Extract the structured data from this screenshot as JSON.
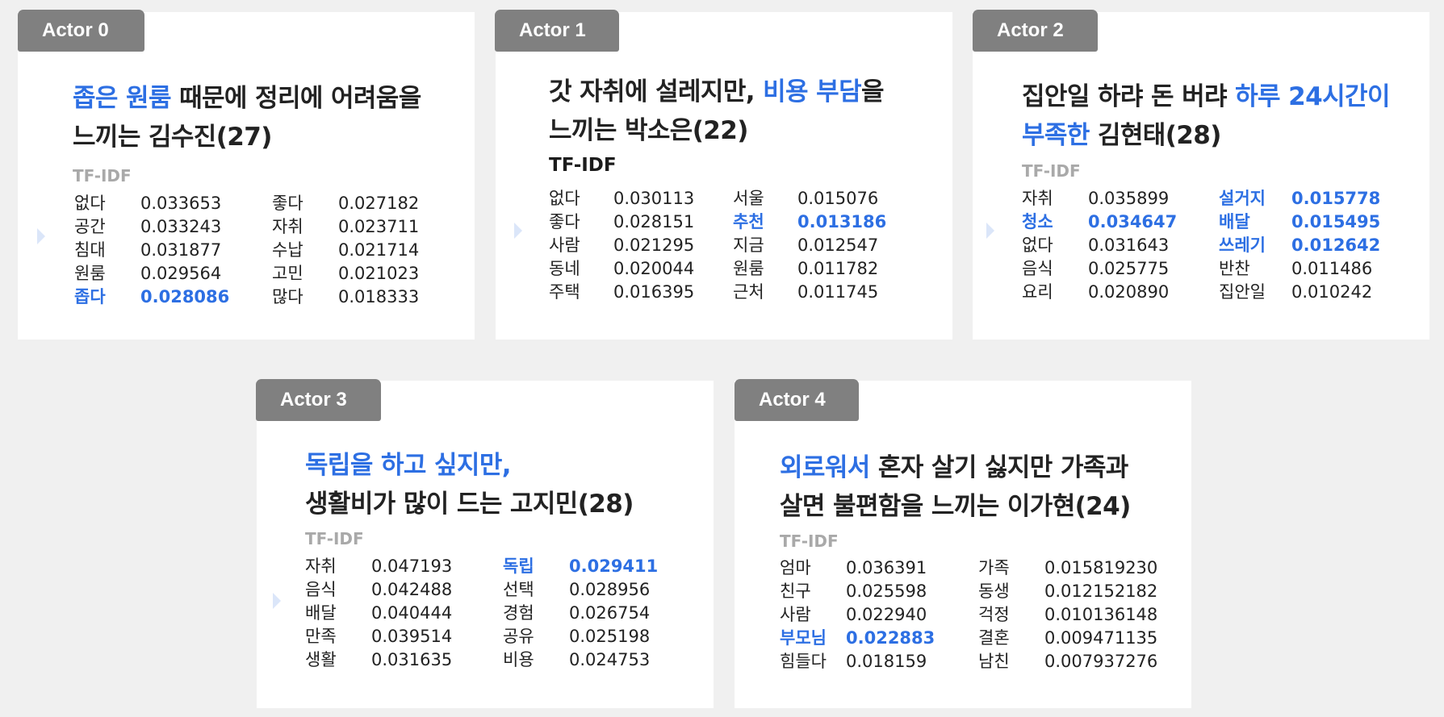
{
  "colors": {
    "accent": "#2d6fe3",
    "tab": "#808080",
    "muted": "#a9a9a9",
    "background": "#f0f0f0"
  },
  "actors": [
    {
      "tab": "Actor 0",
      "title_lines": [
        [
          {
            "text": "좁은 원룸",
            "hl": true
          },
          {
            "text": " 때문에 정리에 어려움을",
            "hl": false
          }
        ],
        [
          {
            "text": "느끼는 김수진(27)",
            "hl": false
          }
        ]
      ],
      "tfidf_label": "TF-IDF",
      "left": [
        {
          "word": "없다",
          "value": "0.033653",
          "hl": false
        },
        {
          "word": "공간",
          "value": "0.033243",
          "hl": false
        },
        {
          "word": "침대",
          "value": "0.031877",
          "hl": false
        },
        {
          "word": "원룸",
          "value": "0.029564",
          "hl": false
        },
        {
          "word": "좁다",
          "value": "0.028086",
          "hl": true
        }
      ],
      "right": [
        {
          "word": "좋다",
          "value": "0.027182",
          "hl": false
        },
        {
          "word": "자취",
          "value": "0.023711",
          "hl": false
        },
        {
          "word": "수납",
          "value": "0.021714",
          "hl": false
        },
        {
          "word": "고민",
          "value": "0.021023",
          "hl": false
        },
        {
          "word": "많다",
          "value": "0.018333",
          "hl": false
        }
      ]
    },
    {
      "tab": "Actor 1",
      "title_lines": [
        [
          {
            "text": "갓 자취에 설레지만, ",
            "hl": false
          },
          {
            "text": "비용 부담",
            "hl": true
          },
          {
            "text": "을",
            "hl": false
          }
        ],
        [
          {
            "text": "느끼는 박소은(22)",
            "hl": false
          }
        ]
      ],
      "tfidf_label": "TF-IDF",
      "left": [
        {
          "word": "없다",
          "value": "0.030113",
          "hl": false
        },
        {
          "word": "좋다",
          "value": "0.028151",
          "hl": false
        },
        {
          "word": "사람",
          "value": "0.021295",
          "hl": false
        },
        {
          "word": "동네",
          "value": "0.020044",
          "hl": false
        },
        {
          "word": "주택",
          "value": "0.016395",
          "hl": false
        }
      ],
      "right": [
        {
          "word": "서울",
          "value": "0.015076",
          "hl": false
        },
        {
          "word": "추천",
          "value": "0.013186",
          "hl": true
        },
        {
          "word": "지금",
          "value": "0.012547",
          "hl": false
        },
        {
          "word": "원룸",
          "value": "0.011782",
          "hl": false
        },
        {
          "word": "근처",
          "value": "0.011745",
          "hl": false
        }
      ]
    },
    {
      "tab": "Actor 2",
      "title_lines": [
        [
          {
            "text": "집안일 하랴 돈 버랴 ",
            "hl": false
          },
          {
            "text": "하루 24시간이",
            "hl": true
          }
        ],
        [
          {
            "text": "부족한",
            "hl": true
          },
          {
            "text": " 김현태(28)",
            "hl": false
          }
        ]
      ],
      "tfidf_label": "TF-IDF",
      "left": [
        {
          "word": "자취",
          "value": "0.035899",
          "hl": false
        },
        {
          "word": "청소",
          "value": "0.034647",
          "hl": true
        },
        {
          "word": "없다",
          "value": "0.031643",
          "hl": false
        },
        {
          "word": "음식",
          "value": "0.025775",
          "hl": false
        },
        {
          "word": "요리",
          "value": "0.020890",
          "hl": false
        }
      ],
      "right": [
        {
          "word": "설거지",
          "value": "0.015778",
          "hl": true
        },
        {
          "word": "배달",
          "value": "0.015495",
          "hl": true
        },
        {
          "word": "쓰레기",
          "value": "0.012642",
          "hl": true
        },
        {
          "word": "반찬",
          "value": "0.011486",
          "hl": false
        },
        {
          "word": "집안일",
          "value": "0.010242",
          "hl": false
        }
      ]
    },
    {
      "tab": "Actor 3",
      "title_lines": [
        [
          {
            "text": "독립을 하고 싶지만,",
            "hl": true
          }
        ],
        [
          {
            "text": "생활비가 많이 드는 고지민(28)",
            "hl": false
          }
        ]
      ],
      "tfidf_label": "TF-IDF",
      "left": [
        {
          "word": "자취",
          "value": "0.047193",
          "hl": false
        },
        {
          "word": "음식",
          "value": "0.042488",
          "hl": false
        },
        {
          "word": "배달",
          "value": "0.040444",
          "hl": false
        },
        {
          "word": "만족",
          "value": "0.039514",
          "hl": false
        },
        {
          "word": "생활",
          "value": "0.031635",
          "hl": false
        }
      ],
      "right": [
        {
          "word": "독립",
          "value": "0.029411",
          "hl": true
        },
        {
          "word": "선택",
          "value": "0.028956",
          "hl": false
        },
        {
          "word": "경험",
          "value": "0.026754",
          "hl": false
        },
        {
          "word": "공유",
          "value": "0.025198",
          "hl": false
        },
        {
          "word": "비용",
          "value": "0.024753",
          "hl": false
        }
      ]
    },
    {
      "tab": "Actor 4",
      "title_lines": [
        [
          {
            "text": "외로워서",
            "hl": true
          },
          {
            "text": " 혼자 살기 싫지만 가족과",
            "hl": false
          }
        ],
        [
          {
            "text": "살면 불편함을 느끼는 이가현(24)",
            "hl": false
          }
        ]
      ],
      "tfidf_label": "TF-IDF",
      "left": [
        {
          "word": "엄마",
          "value": "0.036391",
          "hl": false
        },
        {
          "word": "친구",
          "value": "0.025598",
          "hl": false
        },
        {
          "word": "사람",
          "value": "0.022940",
          "hl": false
        },
        {
          "word": "부모님",
          "value": "0.022883",
          "hl": true
        },
        {
          "word": "힘들다",
          "value": "0.018159",
          "hl": false
        }
      ],
      "right": [
        {
          "word": "가족",
          "value": "0.015819230",
          "hl": false
        },
        {
          "word": "동생",
          "value": "0.012152182",
          "hl": false
        },
        {
          "word": "걱정",
          "value": "0.010136148",
          "hl": false
        },
        {
          "word": "결혼",
          "value": "0.009471135",
          "hl": false
        },
        {
          "word": "남친",
          "value": "0.007937276",
          "hl": false
        }
      ]
    }
  ]
}
